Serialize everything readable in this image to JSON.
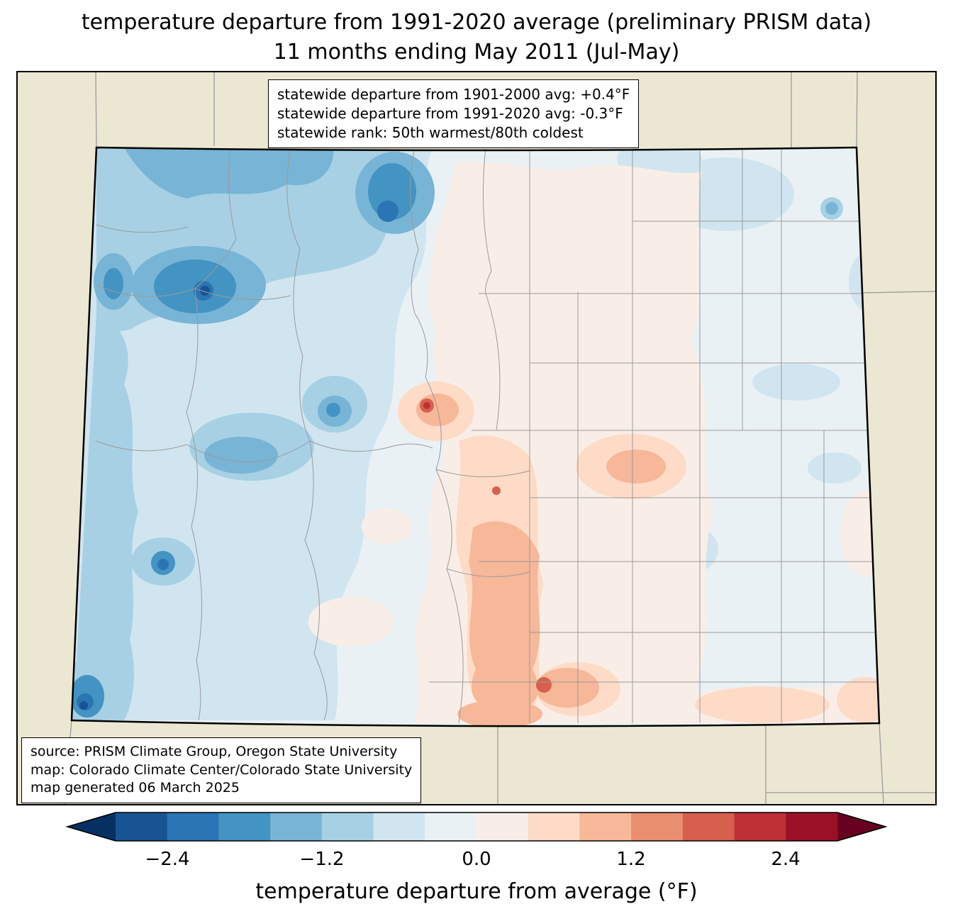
{
  "title": {
    "line1": "temperature departure from 1991-2020 average (preliminary PRISM data)",
    "line2": "11 months ending May 2011 (Jul-May)"
  },
  "stats_box": {
    "line1": "statewide departure from 1901-2000 avg: +0.4°F",
    "line2": "statewide departure from 1991-2020 avg: -0.3°F",
    "line3": "statewide rank: 50th warmest/80th coldest"
  },
  "source_box": {
    "line1": "source: PRISM Climate Group, Oregon State University",
    "line2": "map: Colorado Climate Center/Colorado State University",
    "line3": "map generated 06 March 2025"
  },
  "colorbar": {
    "label": "temperature departure from average (°F)",
    "ticks": [
      "−2.4",
      "−1.2",
      "0.0",
      "1.2",
      "2.4"
    ],
    "tick_values": [
      -2.4,
      -1.2,
      0.0,
      1.2,
      2.4
    ],
    "range": [
      -2.8,
      2.8
    ],
    "segment_step": 0.4,
    "left_arrow_color": "#053061",
    "right_arrow_color": "#67001f",
    "colors": [
      "#185493",
      "#2c75b4",
      "#4393c3",
      "#78b4d5",
      "#a7d0e4",
      "#d1e5f0",
      "#eaf1f5",
      "#f9eee7",
      "#fddbc7",
      "#f7b799",
      "#ea8e70",
      "#d6604d",
      "#be3036",
      "#991027"
    ]
  },
  "map": {
    "region": "Colorado",
    "background_color": "#ece7d2",
    "state_border_color": "#000000",
    "county_line_color": "#9a9a9a",
    "base_fill_color": "#eaf1f5"
  }
}
